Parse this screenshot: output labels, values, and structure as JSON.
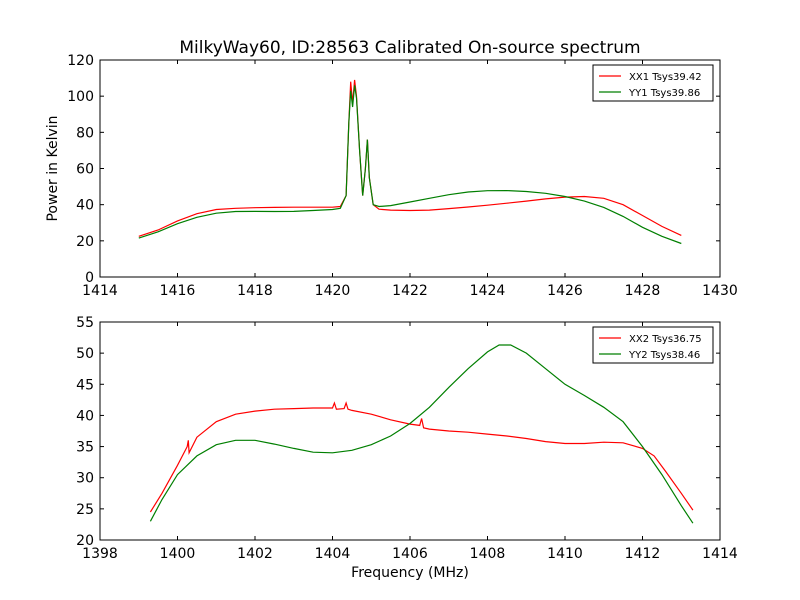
{
  "title": "MilkyWay60, ID:28563 Calibrated On-source spectrum",
  "colors": {
    "xx": "#ff0000",
    "yy": "#007f00"
  },
  "chart_data": [
    {
      "type": "line",
      "xlabel": "",
      "ylabel": "Power in Kelvin",
      "xlim": [
        1414,
        1430
      ],
      "ylim": [
        0,
        120
      ],
      "xticks": [
        1414,
        1416,
        1418,
        1420,
        1422,
        1424,
        1426,
        1428,
        1430
      ],
      "yticks": [
        0,
        20,
        40,
        60,
        80,
        100,
        120
      ],
      "legend_position": "top-right",
      "series": [
        {
          "name": "XX1 Tsys39.42",
          "color": "#ff0000",
          "points": [
            [
              1415.0,
              22.5
            ],
            [
              1415.5,
              26
            ],
            [
              1416.0,
              31
            ],
            [
              1416.5,
              35
            ],
            [
              1417.0,
              37.3
            ],
            [
              1417.5,
              38
            ],
            [
              1418.0,
              38.3
            ],
            [
              1418.5,
              38.5
            ],
            [
              1419.0,
              38.6
            ],
            [
              1419.5,
              38.6
            ],
            [
              1420.0,
              38.6
            ],
            [
              1420.2,
              39
            ],
            [
              1420.35,
              45
            ],
            [
              1420.42,
              85
            ],
            [
              1420.47,
              108
            ],
            [
              1420.52,
              96
            ],
            [
              1420.57,
              109
            ],
            [
              1420.62,
              100
            ],
            [
              1420.7,
              70
            ],
            [
              1420.78,
              45
            ],
            [
              1420.85,
              60
            ],
            [
              1420.9,
              76
            ],
            [
              1420.95,
              55
            ],
            [
              1421.05,
              40
            ],
            [
              1421.2,
              37.5
            ],
            [
              1421.5,
              37
            ],
            [
              1422.0,
              36.8
            ],
            [
              1422.5,
              37
            ],
            [
              1423.0,
              37.8
            ],
            [
              1423.5,
              38.7
            ],
            [
              1424.0,
              39.7
            ],
            [
              1424.5,
              40.8
            ],
            [
              1425.0,
              42
            ],
            [
              1425.5,
              43.2
            ],
            [
              1426.0,
              44.2
            ],
            [
              1426.5,
              44.5
            ],
            [
              1427.0,
              43.5
            ],
            [
              1427.5,
              40
            ],
            [
              1428.0,
              34
            ],
            [
              1428.5,
              28
            ],
            [
              1429.0,
              23
            ]
          ]
        },
        {
          "name": "YY1 Tsys39.86",
          "color": "#007f00",
          "points": [
            [
              1415.0,
              21.5
            ],
            [
              1415.5,
              25
            ],
            [
              1416.0,
              29.5
            ],
            [
              1416.5,
              33
            ],
            [
              1417.0,
              35.3
            ],
            [
              1417.5,
              36.2
            ],
            [
              1418.0,
              36.3
            ],
            [
              1418.5,
              36.2
            ],
            [
              1419.0,
              36.3
            ],
            [
              1419.5,
              36.8
            ],
            [
              1420.0,
              37.3
            ],
            [
              1420.2,
              38
            ],
            [
              1420.35,
              45
            ],
            [
              1420.42,
              85
            ],
            [
              1420.47,
              103
            ],
            [
              1420.52,
              94
            ],
            [
              1420.57,
              106
            ],
            [
              1420.62,
              99
            ],
            [
              1420.7,
              70
            ],
            [
              1420.78,
              45
            ],
            [
              1420.85,
              60
            ],
            [
              1420.9,
              76
            ],
            [
              1420.95,
              55
            ],
            [
              1421.05,
              40
            ],
            [
              1421.2,
              39
            ],
            [
              1421.5,
              39.5
            ],
            [
              1422.0,
              41.5
            ],
            [
              1422.5,
              43.5
            ],
            [
              1423.0,
              45.5
            ],
            [
              1423.5,
              47
            ],
            [
              1424.0,
              47.7
            ],
            [
              1424.5,
              47.8
            ],
            [
              1425.0,
              47.3
            ],
            [
              1425.5,
              46.3
            ],
            [
              1426.0,
              44.5
            ],
            [
              1426.5,
              42
            ],
            [
              1427.0,
              38.5
            ],
            [
              1427.5,
              33.5
            ],
            [
              1428.0,
              27.5
            ],
            [
              1428.5,
              22.5
            ],
            [
              1429.0,
              18.5
            ]
          ]
        }
      ]
    },
    {
      "type": "line",
      "xlabel": "Frequency (MHz)",
      "ylabel": "",
      "xlim": [
        1398,
        1414
      ],
      "ylim": [
        20,
        55
      ],
      "xticks": [
        1398,
        1400,
        1402,
        1404,
        1406,
        1408,
        1410,
        1412,
        1414
      ],
      "yticks": [
        20,
        25,
        30,
        35,
        40,
        45,
        50,
        55
      ],
      "legend_position": "top-right",
      "series": [
        {
          "name": "XX2 Tsys36.75",
          "color": "#ff0000",
          "points": [
            [
              1399.3,
              24.5
            ],
            [
              1399.6,
              27.5
            ],
            [
              1400.0,
              32
            ],
            [
              1400.25,
              35
            ],
            [
              1400.28,
              36
            ],
            [
              1400.3,
              34
            ],
            [
              1400.5,
              36.5
            ],
            [
              1401.0,
              39
            ],
            [
              1401.5,
              40.2
            ],
            [
              1402.0,
              40.7
            ],
            [
              1402.5,
              41
            ],
            [
              1403.0,
              41.1
            ],
            [
              1403.5,
              41.2
            ],
            [
              1404.0,
              41.2
            ],
            [
              1404.05,
              42
            ],
            [
              1404.1,
              41
            ],
            [
              1404.3,
              41.1
            ],
            [
              1404.35,
              42
            ],
            [
              1404.4,
              41
            ],
            [
              1404.5,
              40.8
            ],
            [
              1405.0,
              40.2
            ],
            [
              1405.5,
              39.3
            ],
            [
              1406.0,
              38.6
            ],
            [
              1406.25,
              38.4
            ],
            [
              1406.3,
              39.5
            ],
            [
              1406.35,
              38
            ],
            [
              1406.5,
              37.8
            ],
            [
              1407.0,
              37.5
            ],
            [
              1407.5,
              37.3
            ],
            [
              1408.0,
              37
            ],
            [
              1408.5,
              36.7
            ],
            [
              1409.0,
              36.3
            ],
            [
              1409.5,
              35.8
            ],
            [
              1410.0,
              35.5
            ],
            [
              1410.5,
              35.5
            ],
            [
              1411.0,
              35.7
            ],
            [
              1411.5,
              35.6
            ],
            [
              1412.0,
              34.7
            ],
            [
              1412.3,
              33.5
            ],
            [
              1412.6,
              31
            ],
            [
              1413.0,
              27.5
            ],
            [
              1413.3,
              24.8
            ]
          ]
        },
        {
          "name": "YY2 Tsys38.46",
          "color": "#007f00",
          "points": [
            [
              1399.3,
              23
            ],
            [
              1399.6,
              26.5
            ],
            [
              1400.0,
              30.5
            ],
            [
              1400.5,
              33.5
            ],
            [
              1401.0,
              35.3
            ],
            [
              1401.5,
              36
            ],
            [
              1402.0,
              36
            ],
            [
              1402.5,
              35.4
            ],
            [
              1403.0,
              34.7
            ],
            [
              1403.5,
              34.1
            ],
            [
              1404.0,
              34
            ],
            [
              1404.5,
              34.4
            ],
            [
              1405.0,
              35.3
            ],
            [
              1405.5,
              36.7
            ],
            [
              1406.0,
              38.7
            ],
            [
              1406.5,
              41.3
            ],
            [
              1407.0,
              44.5
            ],
            [
              1407.5,
              47.5
            ],
            [
              1408.0,
              50.2
            ],
            [
              1408.3,
              51.3
            ],
            [
              1408.6,
              51.3
            ],
            [
              1409.0,
              50
            ],
            [
              1409.5,
              47.5
            ],
            [
              1410.0,
              45
            ],
            [
              1410.5,
              43.2
            ],
            [
              1411.0,
              41.3
            ],
            [
              1411.5,
              39
            ],
            [
              1412.0,
              35
            ],
            [
              1412.5,
              30.5
            ],
            [
              1413.0,
              25.5
            ],
            [
              1413.3,
              22.7
            ]
          ]
        }
      ]
    }
  ]
}
